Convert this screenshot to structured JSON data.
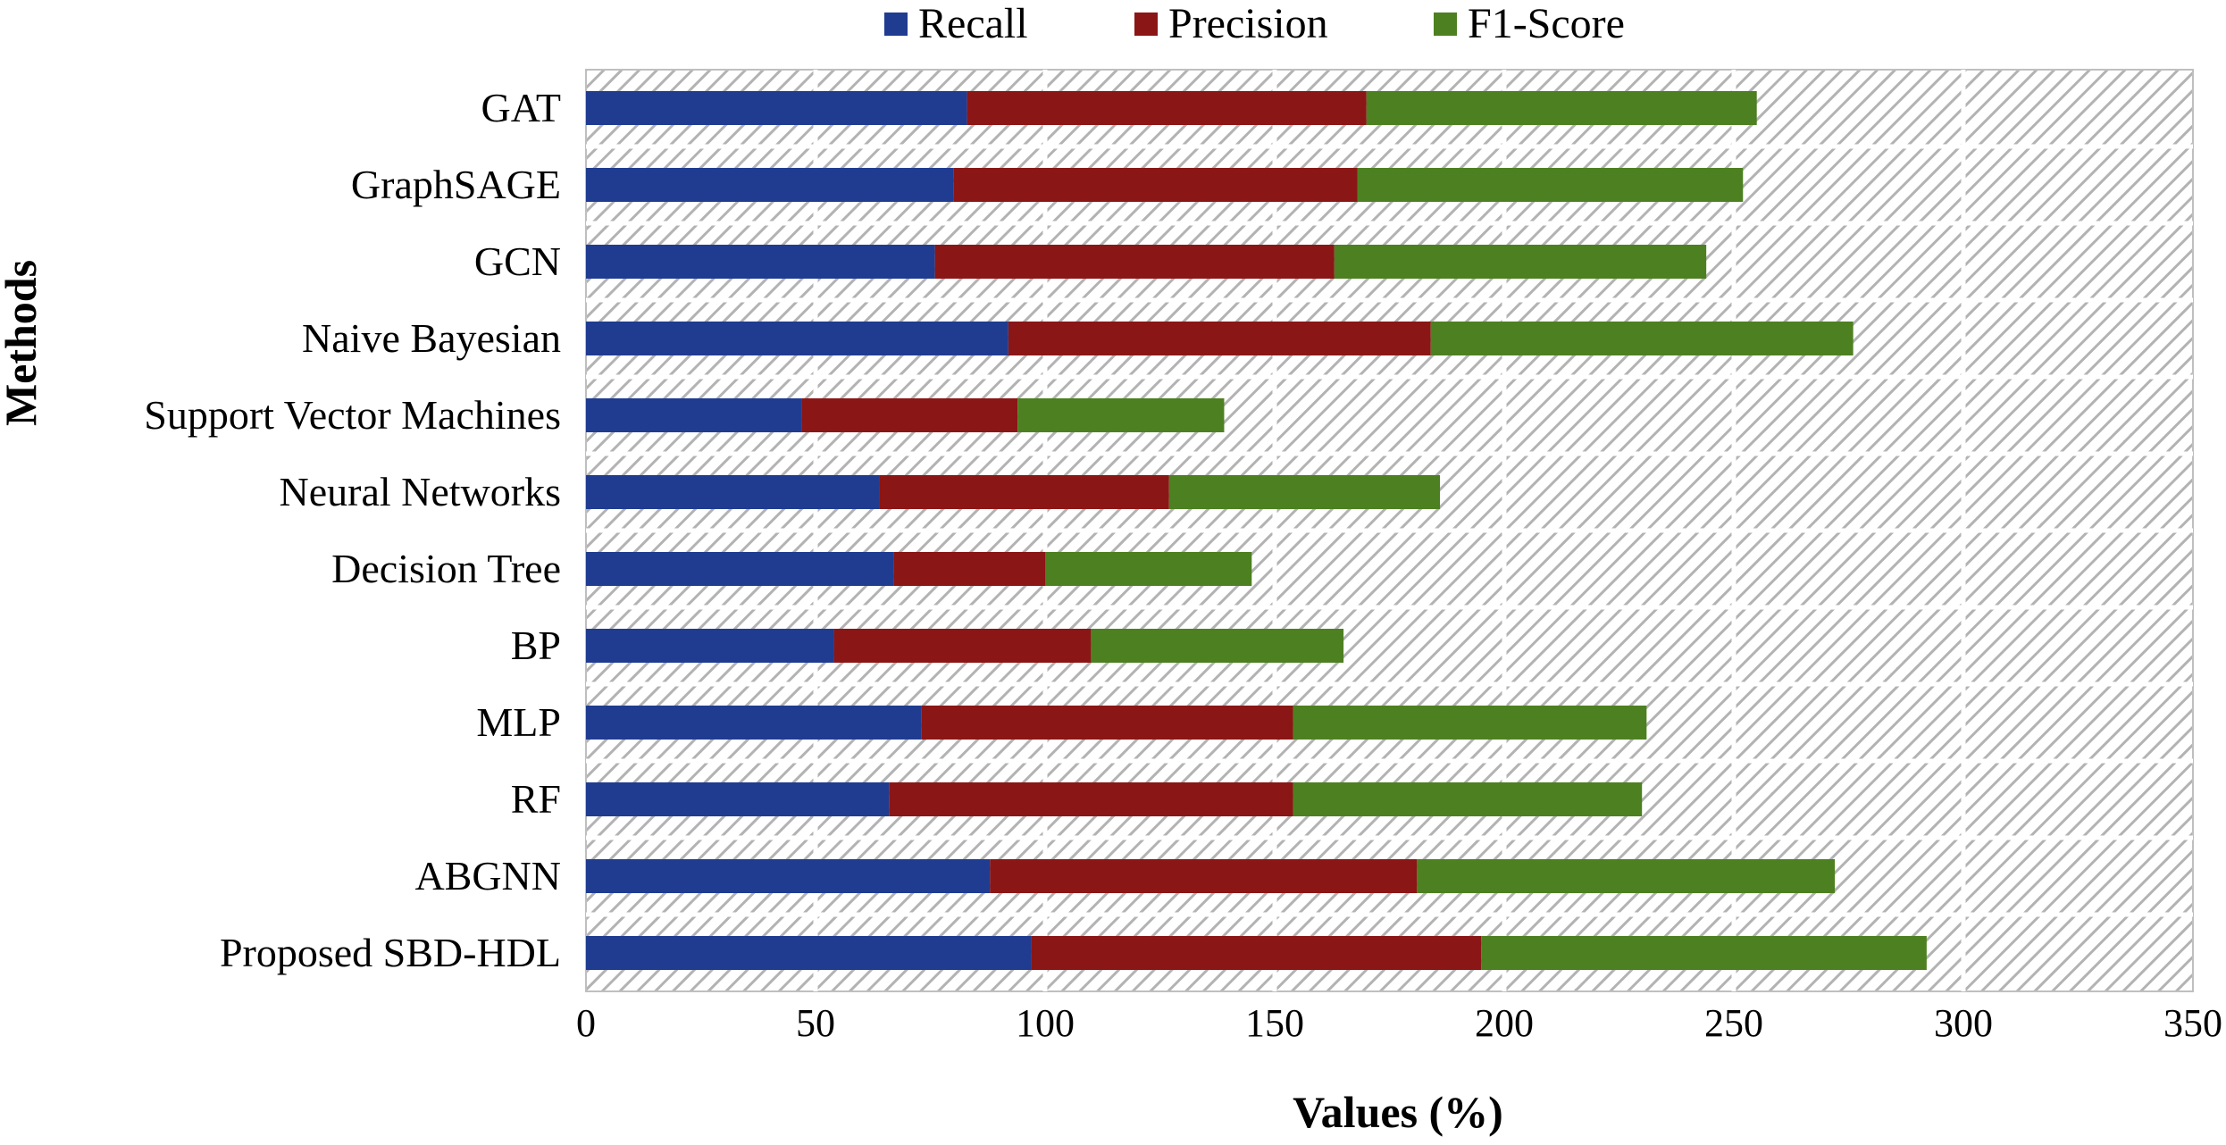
{
  "chart_data": {
    "type": "bar",
    "orientation": "horizontal",
    "stacked": true,
    "title": "",
    "xlabel": "Values (%)",
    "ylabel": "Methods",
    "xlim": [
      0,
      350
    ],
    "xticks": [
      0,
      50,
      100,
      150,
      200,
      250,
      300,
      350
    ],
    "grid": true,
    "legend_position": "top",
    "categories": [
      "GAT",
      "GraphSAGE",
      "GCN",
      "Naive Bayesian",
      "Support Vector Machines",
      "Neural Networks",
      "Decision Tree",
      "BP",
      "MLP",
      "RF",
      "ABGNN",
      "Proposed SBD-HDL"
    ],
    "series": [
      {
        "name": "Recall",
        "color": "#1f3c91",
        "values": [
          83,
          80,
          76,
          92,
          47,
          64,
          67,
          54,
          73,
          66,
          88,
          97
        ]
      },
      {
        "name": "Precision",
        "color": "#8b1616",
        "values": [
          87,
          88,
          87,
          92,
          47,
          63,
          33,
          56,
          81,
          88,
          93,
          98
        ]
      },
      {
        "name": "F1-Score",
        "color": "#4d8020",
        "values": [
          85,
          84,
          81,
          92,
          45,
          59,
          45,
          55,
          77,
          76,
          91,
          97
        ]
      }
    ]
  }
}
